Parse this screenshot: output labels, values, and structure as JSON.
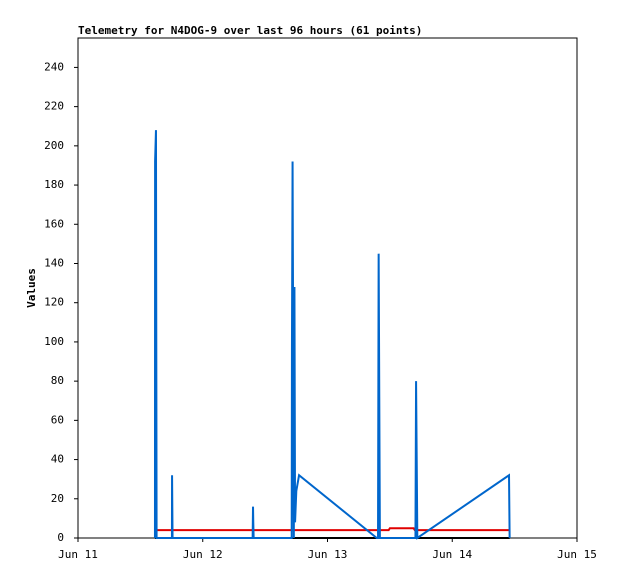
{
  "chart_data": {
    "type": "line",
    "title": "Telemetry for N4DOG-9 over last 96 hours (61 points)",
    "y_label": "Values",
    "xlim": [
      0,
      4
    ],
    "xticks": [
      {
        "value": 0,
        "label": "Jun 11"
      },
      {
        "value": 1,
        "label": "Jun 12"
      },
      {
        "value": 2,
        "label": "Jun 13"
      },
      {
        "value": 3,
        "label": "Jun 14"
      },
      {
        "value": 4,
        "label": "Jun 15"
      }
    ],
    "ylim": [
      0,
      255
    ],
    "yticks": [
      0,
      20,
      40,
      60,
      80,
      100,
      120,
      140,
      160,
      180,
      200,
      220,
      240
    ],
    "series": [
      {
        "color": "#000000",
        "x": [
          0.617,
          3.46
        ],
        "values": [
          0,
          0
        ]
      },
      {
        "color": "#e00000",
        "x": [
          0.617,
          2.49,
          2.5,
          2.69,
          2.7,
          3.46
        ],
        "values": [
          4,
          4,
          5,
          5,
          4,
          4
        ]
      },
      {
        "color": "#0066cc",
        "x": [
          0.617,
          0.618,
          0.625,
          0.63,
          0.753,
          0.754,
          0.758,
          1.4,
          1.403,
          1.405,
          1.408,
          1.713,
          1.715,
          1.72,
          1.73,
          1.735,
          1.74,
          1.75,
          1.772,
          2.395,
          2.405,
          2.41,
          2.415,
          2.42,
          2.705,
          2.71,
          2.715,
          2.72,
          3.455,
          3.46
        ],
        "values": [
          0,
          192,
          208,
          0,
          0,
          32,
          0,
          0,
          16,
          8,
          0,
          0,
          97,
          192,
          0,
          128,
          8,
          24,
          32,
          0,
          0,
          145,
          72,
          0,
          0,
          80,
          40,
          0,
          32,
          0
        ]
      }
    ]
  }
}
